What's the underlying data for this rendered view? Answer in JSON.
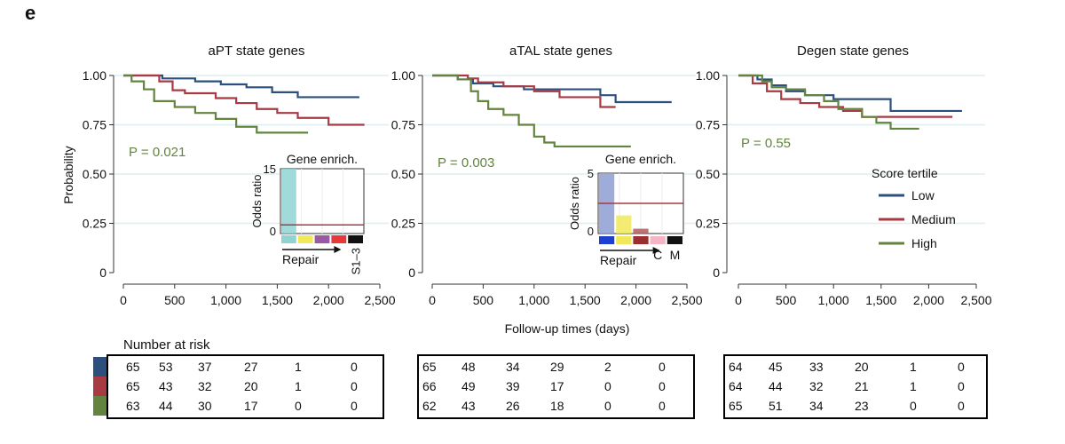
{
  "figure": {
    "panel_letter": "e",
    "shared_xlabel": "Follow-up times (days)",
    "ylabel": "Probability",
    "risk_title": "Number at risk",
    "legend": {
      "title": "Score tertile",
      "items": [
        {
          "label": "Low",
          "color": "#2c4f7c"
        },
        {
          "label": "Medium",
          "color": "#a83a44"
        },
        {
          "label": "High",
          "color": "#62843f"
        }
      ]
    }
  },
  "chart_data": [
    {
      "type": "line",
      "subtype": "kaplan-meier",
      "title": "aPT state genes",
      "xlabel": "Follow-up times (days)",
      "ylabel": "Probability",
      "xlim": [
        0,
        2500
      ],
      "ylim": [
        0,
        1
      ],
      "x_ticks": [
        "0",
        "500",
        "1,000",
        "1,500",
        "2,000",
        "2,500"
      ],
      "y_ticks": [
        "0",
        "0.25",
        "0.50",
        "0.75",
        "1.00"
      ],
      "pvalue": "P = 0.021",
      "series": [
        {
          "name": "Low",
          "color": "#2c4f7c",
          "x": [
            0,
            250,
            380,
            700,
            950,
            1200,
            1450,
            1700,
            2150,
            2300
          ],
          "y": [
            1.0,
            1.0,
            0.985,
            0.97,
            0.955,
            0.94,
            0.915,
            0.89,
            0.89,
            0.89
          ]
        },
        {
          "name": "Medium",
          "color": "#a83a44",
          "x": [
            0,
            350,
            480,
            600,
            900,
            1100,
            1300,
            1500,
            1700,
            2000,
            2350
          ],
          "y": [
            1.0,
            0.97,
            0.925,
            0.91,
            0.885,
            0.86,
            0.83,
            0.81,
            0.785,
            0.75,
            0.75
          ]
        },
        {
          "name": "High",
          "color": "#62843f",
          "x": [
            0,
            80,
            200,
            300,
            500,
            700,
            900,
            1100,
            1300,
            1800
          ],
          "y": [
            1.0,
            0.97,
            0.93,
            0.87,
            0.84,
            0.81,
            0.78,
            0.74,
            0.71,
            0.71
          ]
        }
      ],
      "inset": {
        "title": "Gene enrich.",
        "ylabel": "Odds ratio",
        "y_ticks": [
          "0",
          "15"
        ],
        "ylim": [
          0,
          15
        ],
        "bars": [
          15,
          0,
          0,
          0,
          0
        ],
        "bar_color": "#8fd3d3",
        "ref_line": 2,
        "category_colors": [
          "#8fd3d3",
          "#f2e85a",
          "#9b59a5",
          "#e8393a",
          "#111111"
        ],
        "xlabel": "Repair",
        "end_label": "S1–3"
      },
      "risk_table": [
        [
          65,
          53,
          37,
          27,
          1,
          0
        ],
        [
          65,
          43,
          32,
          20,
          1,
          0
        ],
        [
          63,
          44,
          30,
          17,
          0,
          0
        ]
      ]
    },
    {
      "type": "line",
      "subtype": "kaplan-meier",
      "title": "aTAL state genes",
      "xlabel": "Follow-up times (days)",
      "ylabel": "Probability",
      "xlim": [
        0,
        2500
      ],
      "ylim": [
        0,
        1
      ],
      "x_ticks": [
        "0",
        "500",
        "1,000",
        "1,500",
        "2,000",
        "2,500"
      ],
      "y_ticks": [
        "0",
        "0.25",
        "0.50",
        "0.75",
        "1.00"
      ],
      "pvalue": "P = 0.003",
      "series": [
        {
          "name": "Low",
          "color": "#2c4f7c",
          "x": [
            0,
            250,
            400,
            600,
            900,
            1200,
            1650,
            1800,
            2350
          ],
          "y": [
            1.0,
            0.98,
            0.96,
            0.945,
            0.93,
            0.93,
            0.9,
            0.865,
            0.865
          ]
        },
        {
          "name": "Medium",
          "color": "#a83a44",
          "x": [
            0,
            350,
            450,
            700,
            1000,
            1250,
            1650,
            1800
          ],
          "y": [
            1.0,
            0.985,
            0.965,
            0.945,
            0.92,
            0.89,
            0.84,
            0.84
          ]
        },
        {
          "name": "High",
          "color": "#62843f",
          "x": [
            0,
            250,
            380,
            450,
            550,
            700,
            850,
            1000,
            1100,
            1200,
            1950
          ],
          "y": [
            1.0,
            0.98,
            0.92,
            0.87,
            0.83,
            0.8,
            0.75,
            0.69,
            0.66,
            0.64,
            0.64
          ]
        }
      ],
      "inset": {
        "title": "Gene enrich.",
        "ylabel": "Odds ratio",
        "y_ticks": [
          "0",
          "5"
        ],
        "ylim": [
          0,
          5
        ],
        "bars": [
          5,
          1.5,
          0.4,
          0,
          0
        ],
        "bar_color": "#8e9dd4",
        "bar_colors": [
          "#8e9dd4",
          "#f2e85a",
          "#b05a5a",
          "#f5b5c5",
          "#111111"
        ],
        "ref_line": 2.5,
        "category_colors": [
          "#1f3fd1",
          "#f2e85a",
          "#9b2f2f",
          "#f5b5c5",
          "#111111"
        ],
        "xlabel": "Repair",
        "end_labels": [
          "C",
          "M"
        ]
      },
      "risk_table": [
        [
          65,
          48,
          34,
          29,
          2,
          0
        ],
        [
          66,
          49,
          39,
          17,
          0,
          0
        ],
        [
          62,
          43,
          26,
          18,
          0,
          0
        ]
      ]
    },
    {
      "type": "line",
      "subtype": "kaplan-meier",
      "title": "Degen state genes",
      "xlabel": "Follow-up times (days)",
      "ylabel": "Probability",
      "xlim": [
        0,
        2500
      ],
      "ylim": [
        0,
        1
      ],
      "x_ticks": [
        "0",
        "500",
        "1,000",
        "1,500",
        "2,000",
        "2,500"
      ],
      "y_ticks": [
        "0",
        "0.25",
        "0.50",
        "0.75",
        "1.00"
      ],
      "pvalue": "P = 0.55",
      "series": [
        {
          "name": "Low",
          "color": "#2c4f7c",
          "x": [
            0,
            200,
            350,
            500,
            700,
            1000,
            1600,
            2350
          ],
          "y": [
            1.0,
            0.98,
            0.95,
            0.92,
            0.9,
            0.88,
            0.82,
            0.82
          ]
        },
        {
          "name": "Medium",
          "color": "#a83a44",
          "x": [
            0,
            150,
            300,
            450,
            650,
            850,
            1100,
            1300,
            2250
          ],
          "y": [
            1.0,
            0.96,
            0.92,
            0.88,
            0.86,
            0.84,
            0.82,
            0.79,
            0.79
          ]
        },
        {
          "name": "High",
          "color": "#62843f",
          "x": [
            0,
            250,
            350,
            500,
            700,
            900,
            1050,
            1300,
            1450,
            1600,
            1900
          ],
          "y": [
            1.0,
            0.97,
            0.94,
            0.93,
            0.9,
            0.87,
            0.83,
            0.79,
            0.76,
            0.73,
            0.73
          ]
        }
      ],
      "risk_table": [
        [
          64,
          45,
          33,
          20,
          1,
          0
        ],
        [
          64,
          44,
          32,
          21,
          1,
          0
        ],
        [
          65,
          51,
          34,
          23,
          0,
          0
        ]
      ]
    }
  ]
}
